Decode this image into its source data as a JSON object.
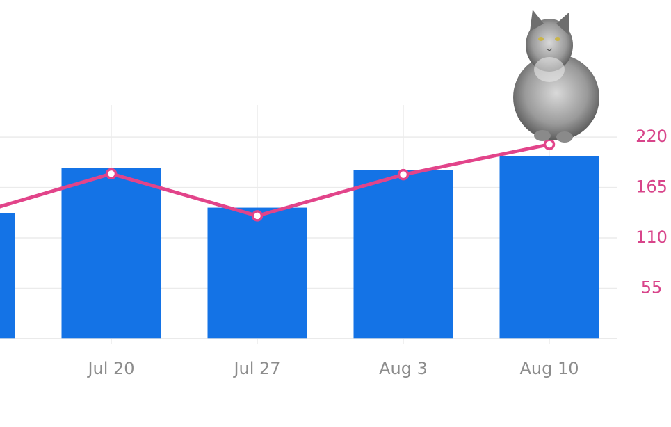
{
  "chart_data": {
    "type": "bar",
    "categories": [
      null,
      "Jul 20",
      "Jul 27",
      "Aug 3",
      "Aug 10"
    ],
    "series": [
      {
        "type": "bar",
        "color": "#1473e6",
        "values": [
          137,
          186,
          143,
          184,
          199
        ]
      },
      {
        "type": "line",
        "color": "#e2448a",
        "values": [
          133,
          180,
          134,
          179,
          212
        ]
      }
    ],
    "ylim": [
      0,
      255
    ],
    "yticks": [
      55,
      110,
      165,
      220
    ],
    "grid": true
  }
}
